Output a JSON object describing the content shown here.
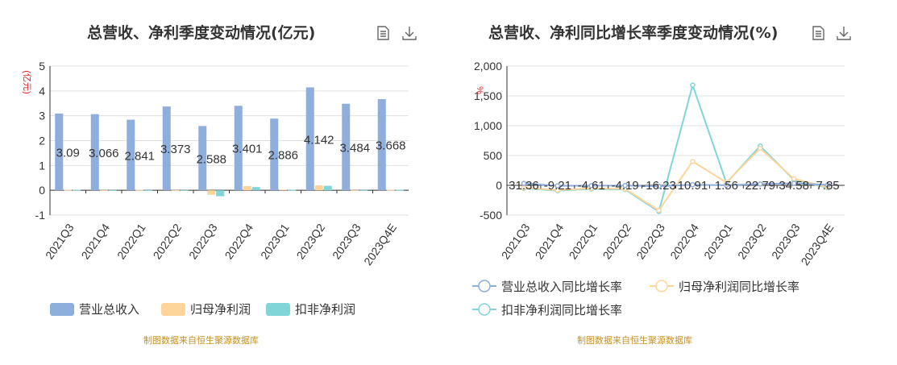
{
  "chart_data": [
    {
      "type": "bar",
      "title": "总营收、净利季度变动情况(亿元)",
      "ylabel": "(亿元)",
      "ylim": [
        -1,
        5
      ],
      "yticks": [
        "-1",
        "0",
        "1",
        "2",
        "3",
        "4",
        "5"
      ],
      "grid": true,
      "legend_position": "bottom",
      "categories": [
        "2021Q3",
        "2021Q4",
        "2022Q1",
        "2022Q2",
        "2022Q3",
        "2022Q4",
        "2023Q1",
        "2023Q2",
        "2023Q3",
        "2023Q4E"
      ],
      "series": [
        {
          "name": "营业总收入",
          "color": "#8eaedc",
          "values": [
            3.09,
            3.066,
            2.841,
            3.373,
            2.588,
            3.401,
            2.886,
            4.142,
            3.484,
            3.668
          ],
          "labels": [
            "3.09",
            "3.066",
            "2.841",
            "3.373",
            "2.588",
            "3.401",
            "2.886",
            "4.142",
            "3.484",
            "3.668"
          ]
        },
        {
          "name": "归母净利润",
          "color": "#fdd59b",
          "values": [
            0.02,
            0.01,
            0.02,
            0.01,
            -0.18,
            0.17,
            0.03,
            0.2,
            0.01,
            0.02
          ]
        },
        {
          "name": "扣非净利润",
          "color": "#7fd5d8",
          "values": [
            0.02,
            0.01,
            0.01,
            0.01,
            -0.24,
            0.13,
            0.02,
            0.18,
            0.01,
            0.02
          ]
        }
      ],
      "source": "制图数据来自恒生聚源数据库"
    },
    {
      "type": "line",
      "title": "总营收、净利同比增长率季度变动情况(%)",
      "ylabel": "%",
      "ylim": [
        -500,
        2000
      ],
      "yticks": [
        "-500",
        "0",
        "500",
        "1,000",
        "1,500",
        "2,000"
      ],
      "grid": true,
      "legend_position": "bottom",
      "categories": [
        "2021Q3",
        "2021Q4",
        "2022Q1",
        "2022Q2",
        "2022Q3",
        "2022Q4",
        "2023Q1",
        "2023Q2",
        "2023Q3",
        "2023Q4E"
      ],
      "series": [
        {
          "name": "营业总收入同比增长率",
          "color": "#8eaedc",
          "values": [
            31.36,
            -9.21,
            -4.61,
            -4.19,
            -16.23,
            10.91,
            1.56,
            22.79,
            34.58,
            7.85
          ],
          "labels": [
            "31.36",
            "-9.21",
            "-4.61",
            "-4.19",
            "-16.23",
            "10.91",
            "1.56",
            "22.79",
            "34.58",
            "7.85"
          ]
        },
        {
          "name": "归母净利润同比增长率",
          "color": "#fdd59b",
          "values": [
            -40,
            -80,
            -50,
            -60,
            -420,
            400,
            50,
            620,
            110,
            -30
          ]
        },
        {
          "name": "扣非净利润同比增长率",
          "color": "#7fd5d8",
          "values": [
            -50,
            -90,
            -60,
            -70,
            -440,
            1680,
            40,
            660,
            90,
            -40
          ]
        }
      ],
      "source": "制图数据来自恒生聚源数据库"
    }
  ]
}
